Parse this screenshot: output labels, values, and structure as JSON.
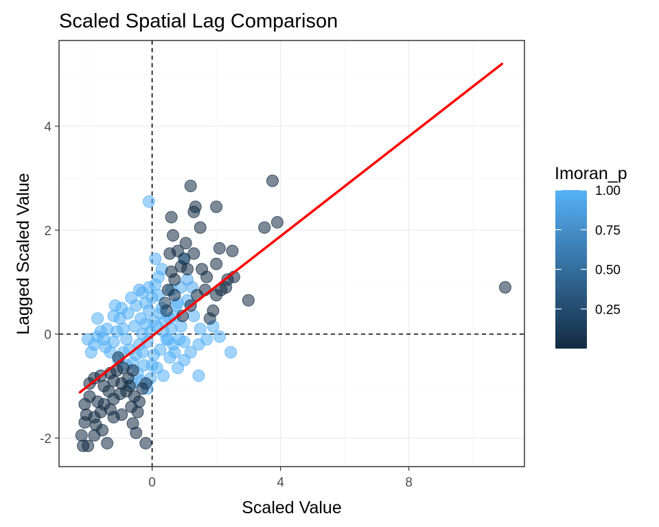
{
  "chart_data": {
    "type": "scatter",
    "title": "Scaled Spatial Lag Comparison",
    "xlabel": "Scaled Value",
    "ylabel": "Lagged Scaled Value",
    "xlim": [
      -2.9,
      11.6
    ],
    "ylim": [
      -2.55,
      5.65
    ],
    "x_ticks": [
      0,
      4,
      8
    ],
    "y_ticks": [
      -2,
      0,
      2,
      4
    ],
    "grid": true,
    "reference_lines": {
      "x": 0,
      "y": 0,
      "style": "dashed"
    },
    "legend": {
      "title": "Imoran_p",
      "position": "right",
      "type": "colorbar",
      "breaks": [
        0.25,
        0.5,
        0.75,
        1.0
      ],
      "break_labels": [
        "0.25",
        "0.50",
        "0.75",
        "1.00"
      ],
      "range": [
        0,
        1.0
      ],
      "low_color": "#132b43",
      "high_color": "#56b1f7"
    },
    "fit_line": {
      "color": "#ff0000",
      "x": [
        -2.25,
        10.9
      ],
      "y": [
        -1.12,
        5.2
      ]
    },
    "point_opacity": 0.55,
    "points": [
      [
        -2.0,
        -2.15,
        0.0
      ],
      [
        -2.2,
        -1.95,
        0.0
      ],
      [
        -2.15,
        -2.15,
        0.0
      ],
      [
        -1.8,
        -1.95,
        0.0
      ],
      [
        -1.4,
        -2.1,
        0.0
      ],
      [
        -0.2,
        -2.1,
        0.0
      ],
      [
        -0.5,
        -1.9,
        0.0
      ],
      [
        -0.6,
        -1.72,
        0.0
      ],
      [
        -1.2,
        -1.6,
        0.0
      ],
      [
        -1.3,
        -1.45,
        0.0
      ],
      [
        -1.6,
        -1.5,
        0.0
      ],
      [
        -1.8,
        -1.6,
        0.0
      ],
      [
        -2.05,
        -1.55,
        0.0
      ],
      [
        -2.1,
        -1.35,
        0.0
      ],
      [
        -1.95,
        -1.2,
        0.0
      ],
      [
        -1.7,
        -1.3,
        0.0
      ],
      [
        -1.5,
        -1.35,
        0.0
      ],
      [
        -1.2,
        -1.25,
        0.0
      ],
      [
        -1.0,
        -1.15,
        0.0
      ],
      [
        -0.8,
        -1.1,
        0.0
      ],
      [
        -0.4,
        -1.3,
        0.0
      ],
      [
        -0.3,
        -1.05,
        0.05
      ],
      [
        -1.95,
        -0.95,
        0.0
      ],
      [
        -1.8,
        -0.85,
        0.0
      ],
      [
        -1.6,
        -0.8,
        0.05
      ],
      [
        -1.5,
        -1.0,
        0.0
      ],
      [
        -1.3,
        -0.75,
        0.0
      ],
      [
        -1.1,
        -0.7,
        0.0
      ],
      [
        -0.9,
        -0.65,
        0.05
      ],
      [
        -0.75,
        -0.85,
        0.0
      ],
      [
        -0.6,
        -0.7,
        0.0
      ],
      [
        -1.05,
        -0.45,
        0.1
      ],
      [
        -1.2,
        -0.9,
        0.0
      ],
      [
        -0.95,
        -0.95,
        0.0
      ],
      [
        -0.7,
        -1.0,
        0.0
      ],
      [
        -0.55,
        -1.2,
        0.0
      ],
      [
        -2.1,
        -1.7,
        0.0
      ],
      [
        -1.75,
        -1.75,
        0.0
      ],
      [
        -1.55,
        -1.85,
        0.0
      ],
      [
        -0.95,
        -1.55,
        0.0
      ],
      [
        -0.45,
        -1.5,
        0.0
      ],
      [
        -0.65,
        -1.4,
        0.0
      ],
      [
        -1.35,
        -1.1,
        0.0
      ],
      [
        -0.2,
        -0.95,
        0.1
      ],
      [
        2.0,
        2.45,
        0.0
      ],
      [
        3.75,
        2.95,
        0.0
      ],
      [
        0.6,
        2.25,
        0.0
      ],
      [
        0.65,
        1.9,
        0.0
      ],
      [
        1.2,
        2.85,
        0.0
      ],
      [
        1.3,
        2.35,
        0.0
      ],
      [
        1.35,
        2.45,
        0.0
      ],
      [
        1.5,
        2.05,
        0.0
      ],
      [
        2.1,
        1.65,
        0.0
      ],
      [
        2.5,
        1.6,
        0.0
      ],
      [
        3.5,
        2.05,
        0.0
      ],
      [
        3.9,
        2.15,
        0.0
      ],
      [
        3.0,
        0.65,
        0.0
      ],
      [
        2.35,
        1.05,
        0.0
      ],
      [
        2.15,
        0.85,
        0.0
      ],
      [
        2.0,
        0.75,
        0.0
      ],
      [
        1.9,
        0.45,
        0.0
      ],
      [
        1.7,
        1.1,
        0.0
      ],
      [
        1.55,
        1.25,
        0.0
      ],
      [
        1.3,
        1.55,
        0.0
      ],
      [
        1.0,
        1.45,
        0.0
      ],
      [
        0.6,
        1.2,
        0.0
      ],
      [
        0.7,
        1.05,
        0.0
      ],
      [
        0.9,
        1.3,
        0.0
      ],
      [
        1.4,
        0.75,
        0.0
      ],
      [
        1.2,
        0.55,
        0.0
      ],
      [
        0.95,
        0.35,
        0.0
      ],
      [
        0.7,
        0.75,
        0.05
      ],
      [
        0.5,
        0.85,
        0.0
      ],
      [
        0.45,
        0.45,
        0.1
      ],
      [
        1.65,
        0.85,
        0.0
      ],
      [
        2.0,
        1.35,
        0.0
      ],
      [
        0.8,
        1.6,
        0.0
      ],
      [
        1.05,
        1.75,
        0.0
      ],
      [
        1.8,
        0.3,
        0.05
      ],
      [
        2.3,
        0.9,
        0.0
      ],
      [
        2.55,
        1.1,
        0.0
      ],
      [
        1.1,
        1.25,
        0.0
      ],
      [
        0.55,
        1.55,
        0.0
      ],
      [
        0.4,
        0.6,
        0.15
      ],
      [
        11.0,
        0.9,
        0.0
      ],
      [
        -0.1,
        2.55,
        1.0
      ],
      [
        1.0,
        1.45,
        1.0
      ],
      [
        1.1,
        1.05,
        0.95
      ],
      [
        0.9,
        0.9,
        0.95
      ],
      [
        0.8,
        0.6,
        1.0
      ],
      [
        0.7,
        0.35,
        1.0
      ],
      [
        0.6,
        0.1,
        1.0
      ],
      [
        0.5,
        -0.1,
        1.0
      ],
      [
        0.4,
        0.25,
        1.0
      ],
      [
        0.3,
        0.5,
        1.0
      ],
      [
        0.2,
        0.75,
        1.0
      ],
      [
        0.1,
        0.95,
        1.0
      ],
      [
        0.0,
        0.7,
        1.0
      ],
      [
        -0.1,
        0.45,
        1.0
      ],
      [
        -0.2,
        0.2,
        1.0
      ],
      [
        -0.3,
        0.0,
        1.0
      ],
      [
        -0.4,
        -0.2,
        1.0
      ],
      [
        -0.5,
        -0.4,
        1.0
      ],
      [
        -0.6,
        -0.55,
        1.0
      ],
      [
        -0.7,
        -0.3,
        1.0
      ],
      [
        -0.8,
        -0.1,
        1.0
      ],
      [
        -0.9,
        0.1,
        1.0
      ],
      [
        -1.0,
        0.3,
        1.0
      ],
      [
        -1.1,
        0.05,
        1.0
      ],
      [
        -1.2,
        -0.15,
        1.0
      ],
      [
        -1.3,
        -0.35,
        1.0
      ],
      [
        -1.4,
        0.1,
        1.0
      ],
      [
        -1.5,
        -0.1,
        1.0
      ],
      [
        -1.6,
        0.05,
        1.0
      ],
      [
        -1.7,
        -0.05,
        1.0
      ],
      [
        -1.8,
        -0.2,
        1.0
      ],
      [
        -1.9,
        -0.35,
        1.0
      ],
      [
        -2.0,
        -0.1,
        1.0
      ],
      [
        -1.2,
        0.35,
        1.0
      ],
      [
        -0.5,
        0.55,
        1.0
      ],
      [
        -0.3,
        0.8,
        1.0
      ],
      [
        -0.1,
        0.9,
        1.0
      ],
      [
        0.2,
        1.1,
        1.0
      ],
      [
        0.3,
        1.25,
        1.0
      ],
      [
        0.1,
        1.45,
        1.0
      ],
      [
        1.3,
        0.35,
        1.0
      ],
      [
        1.5,
        0.1,
        1.0
      ],
      [
        1.7,
        -0.1,
        1.0
      ],
      [
        1.9,
        0.15,
        1.0
      ],
      [
        2.1,
        -0.05,
        1.0
      ],
      [
        2.45,
        -0.35,
        1.0
      ],
      [
        1.45,
        -0.2,
        1.0
      ],
      [
        1.2,
        -0.35,
        1.0
      ],
      [
        1.0,
        -0.5,
        1.0
      ],
      [
        0.8,
        -0.65,
        1.0
      ],
      [
        0.55,
        -0.45,
        1.0
      ],
      [
        0.35,
        -0.8,
        1.0
      ],
      [
        0.15,
        -0.65,
        1.0
      ],
      [
        -0.05,
        -0.85,
        1.0
      ],
      [
        -0.15,
        -1.05,
        1.0
      ],
      [
        -0.25,
        -0.6,
        1.0
      ],
      [
        -0.45,
        -0.75,
        1.0
      ],
      [
        -0.6,
        -0.95,
        1.0
      ],
      [
        1.45,
        -0.8,
        1.0
      ],
      [
        1.0,
        -0.15,
        1.0
      ],
      [
        0.9,
        0.15,
        1.0
      ],
      [
        0.65,
        -0.2,
        1.0
      ],
      [
        0.25,
        -0.3,
        1.0
      ],
      [
        0.05,
        -0.4,
        1.0
      ],
      [
        -0.15,
        -0.15,
        1.0
      ],
      [
        0.15,
        0.15,
        1.0
      ],
      [
        0.35,
        0.05,
        1.0
      ],
      [
        0.55,
        0.3,
        1.0
      ],
      [
        0.75,
        0.55,
        1.0
      ],
      [
        -0.35,
        0.3,
        1.0
      ],
      [
        -0.55,
        0.15,
        1.0
      ],
      [
        -0.75,
        0.4,
        1.0
      ],
      [
        -0.95,
        0.5,
        1.0
      ],
      [
        -1.15,
        0.55,
        1.0
      ],
      [
        -0.65,
        0.7,
        1.0
      ],
      [
        -0.4,
        0.85,
        0.95
      ],
      [
        0.05,
        0.25,
        1.0
      ],
      [
        -0.05,
        0.05,
        1.0
      ],
      [
        0.45,
        -0.1,
        1.0
      ],
      [
        0.7,
        -0.35,
        1.0
      ],
      [
        -0.9,
        -0.35,
        1.0
      ],
      [
        -1.05,
        -0.5,
        1.0
      ],
      [
        -0.8,
        -0.6,
        0.95
      ],
      [
        1.1,
        0.65,
        1.0
      ],
      [
        1.25,
        0.9,
        0.95
      ],
      [
        -1.45,
        -0.25,
        1.0
      ],
      [
        -0.3,
        -0.35,
        1.0
      ],
      [
        0.0,
        -0.6,
        1.0
      ],
      [
        0.25,
        0.4,
        1.0
      ],
      [
        0.85,
        -0.1,
        1.0
      ],
      [
        -1.7,
        0.3,
        1.0
      ],
      [
        -0.2,
        0.6,
        1.0
      ],
      [
        0.6,
        0.85,
        1.0
      ],
      [
        -0.35,
        -0.9,
        1.0
      ]
    ]
  }
}
